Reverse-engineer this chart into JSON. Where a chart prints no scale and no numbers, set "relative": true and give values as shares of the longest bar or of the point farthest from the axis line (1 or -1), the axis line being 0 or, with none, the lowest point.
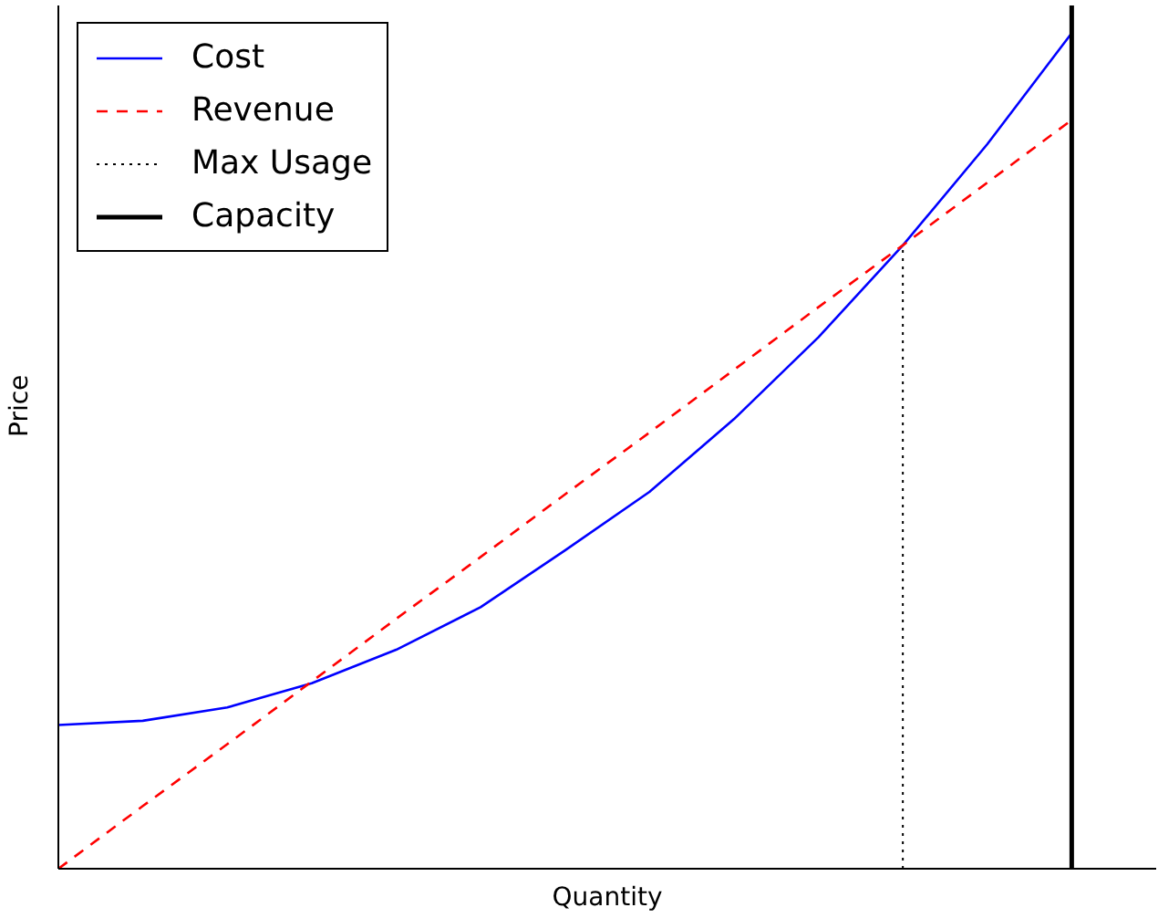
{
  "chart_data": {
    "type": "line",
    "xlabel": "Quantity",
    "ylabel": "Price",
    "relative": true,
    "categories": [
      null,
      null,
      null,
      null,
      null,
      null,
      null,
      null,
      null,
      null,
      null,
      null,
      null,
      null
    ],
    "legend": "top left",
    "series": [
      {
        "name": "Cost",
        "color": "#0000ff",
        "line_style": "solid",
        "values": [
          0.172,
          0.177,
          0.193,
          0.222,
          0.262,
          0.313,
          0.381,
          0.451,
          0.538,
          0.636,
          0.746,
          0.867,
          1,
          null
        ]
      },
      {
        "name": "Revenue",
        "color": "#ff0000",
        "line_style": "dashed",
        "values": [
          0,
          0.075,
          0.149,
          0.224,
          0.299,
          0.373,
          0.448,
          0.522,
          0.597,
          0.672,
          0.746,
          0.821,
          0.896,
          null
        ]
      }
    ],
    "ref_lines": [
      {
        "axis": "x",
        "label": "Max Usage",
        "color": "#000000",
        "line_style": "dotted"
      },
      {
        "axis": "x",
        "label": "Capacity",
        "color": "#000000",
        "line_style": "solid"
      }
    ]
  }
}
